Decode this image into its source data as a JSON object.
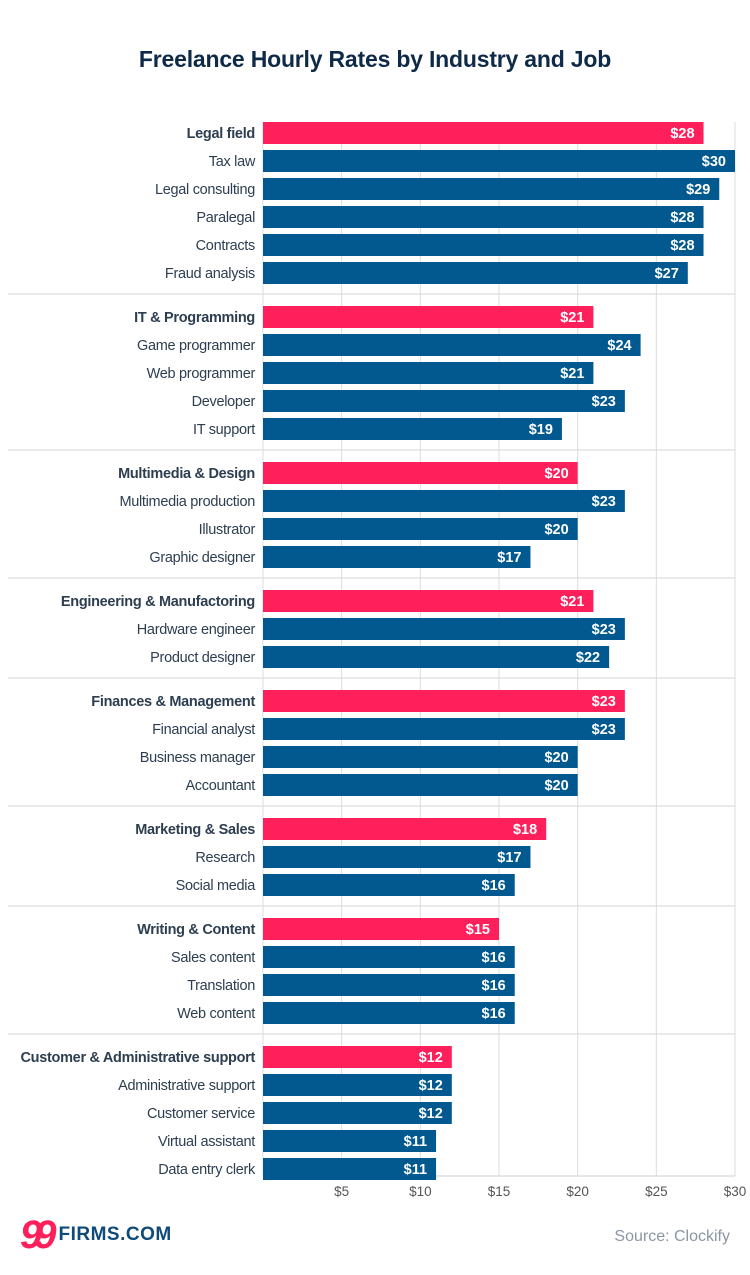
{
  "chart_data": {
    "type": "bar",
    "orientation": "horizontal",
    "title": "Freelance Hourly Rates by Industry and Job",
    "xlim": [
      0,
      30
    ],
    "xticks": [
      5,
      10,
      15,
      20,
      25,
      30
    ],
    "xtick_labels": [
      "$5",
      "$10",
      "$15",
      "$20",
      "$25",
      "$30"
    ],
    "grid": "vertical",
    "value_prefix": "$",
    "colors": {
      "group": "#ff1f5a",
      "job": "#02598f"
    },
    "groups": [
      {
        "name": "Legal field",
        "value": 28,
        "jobs": [
          {
            "name": "Tax law",
            "value": 30
          },
          {
            "name": "Legal consulting",
            "value": 29
          },
          {
            "name": "Paralegal",
            "value": 28
          },
          {
            "name": "Contracts",
            "value": 28
          },
          {
            "name": "Fraud analysis",
            "value": 27
          }
        ]
      },
      {
        "name": "IT & Programming",
        "value": 21,
        "jobs": [
          {
            "name": "Game programmer",
            "value": 24
          },
          {
            "name": "Web programmer",
            "value": 21
          },
          {
            "name": "Developer",
            "value": 23
          },
          {
            "name": "IT support",
            "value": 19
          }
        ]
      },
      {
        "name": "Multimedia & Design",
        "value": 20,
        "jobs": [
          {
            "name": "Multimedia production",
            "value": 23
          },
          {
            "name": "Illustrator",
            "value": 20
          },
          {
            "name": "Graphic designer",
            "value": 17
          }
        ]
      },
      {
        "name": "Engineering & Manufactoring",
        "value": 21,
        "jobs": [
          {
            "name": "Hardware engineer",
            "value": 23
          },
          {
            "name": "Product designer",
            "value": 22
          }
        ]
      },
      {
        "name": "Finances & Management",
        "value": 23,
        "jobs": [
          {
            "name": "Financial analyst",
            "value": 23
          },
          {
            "name": "Business manager",
            "value": 20
          },
          {
            "name": "Accountant",
            "value": 20
          }
        ]
      },
      {
        "name": "Marketing & Sales",
        "value": 18,
        "jobs": [
          {
            "name": "Research",
            "value": 17
          },
          {
            "name": "Social media",
            "value": 16
          }
        ]
      },
      {
        "name": "Writing & Content",
        "value": 15,
        "jobs": [
          {
            "name": "Sales content",
            "value": 16
          },
          {
            "name": "Translation",
            "value": 16
          },
          {
            "name": "Web content",
            "value": 16
          }
        ]
      },
      {
        "name": "Customer & Administrative support",
        "value": 12,
        "jobs": [
          {
            "name": "Administrative support",
            "value": 12
          },
          {
            "name": "Customer service",
            "value": 12
          },
          {
            "name": "Virtual assistant",
            "value": 11
          },
          {
            "name": "Data entry clerk",
            "value": 11
          }
        ]
      }
    ]
  },
  "footer": {
    "logo_text": "99FIRMS.COM",
    "logo_digits": "99",
    "logo_word": "FIRMS.COM",
    "source": "Source: Clockify"
  }
}
